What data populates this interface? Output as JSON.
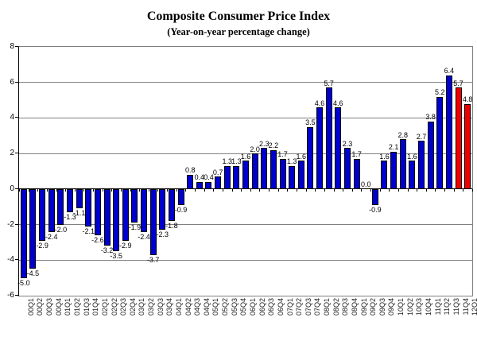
{
  "title": "Composite Consumer Price Index",
  "subtitle": "(Year-on-year percentage change)",
  "chart_data": {
    "type": "bar",
    "title": "Composite Consumer Price Index",
    "subtitle": "(Year-on-year percentage change)",
    "xlabel": "",
    "ylabel": "",
    "ylim": [
      -6,
      8
    ],
    "yticks": [
      8,
      6,
      4,
      2,
      0,
      -2,
      -4,
      -6
    ],
    "grid": true,
    "legend": "none",
    "label_format": "1dp",
    "bar_color": "#0000CD",
    "highlight_color": "#EE0000",
    "highlight_indices": [
      47,
      48
    ],
    "grid_color": "#808080",
    "categories": [
      "00Q1",
      "00Q2",
      "00Q3",
      "00Q4",
      "01Q1",
      "01Q2",
      "01Q3",
      "01Q4",
      "02Q1",
      "02Q2",
      "02Q3",
      "02Q4",
      "03Q1",
      "03Q2",
      "03Q3",
      "03Q4",
      "04Q1",
      "04Q2",
      "04Q3",
      "04Q4",
      "05Q1",
      "05Q2",
      "05Q3",
      "05Q4",
      "06Q1",
      "06Q2",
      "06Q3",
      "06Q4",
      "07Q1",
      "07Q2",
      "07Q3",
      "07Q4",
      "08Q1",
      "08Q2",
      "08Q3",
      "08Q4",
      "09Q1",
      "09Q2",
      "09Q3",
      "09Q4",
      "10Q1",
      "10Q2",
      "10Q3",
      "10Q4",
      "11Q1",
      "11Q2",
      "11Q3",
      "11Q4",
      "12Q1"
    ],
    "values": [
      -5.0,
      -4.5,
      -2.9,
      -2.4,
      -2.0,
      -1.3,
      -1.1,
      -2.1,
      -2.6,
      -3.2,
      -3.5,
      -2.9,
      -1.9,
      -2.4,
      -3.7,
      -2.3,
      -1.8,
      -0.9,
      0.8,
      0.4,
      0.4,
      0.7,
      1.3,
      1.3,
      1.6,
      2.0,
      2.3,
      2.2,
      1.7,
      1.3,
      1.6,
      3.5,
      4.6,
      5.7,
      4.6,
      2.3,
      1.7,
      0.0,
      -0.9,
      1.6,
      2.1,
      2.8,
      1.6,
      2.7,
      3.8,
      5.2,
      6.4,
      5.7,
      4.8
    ]
  }
}
